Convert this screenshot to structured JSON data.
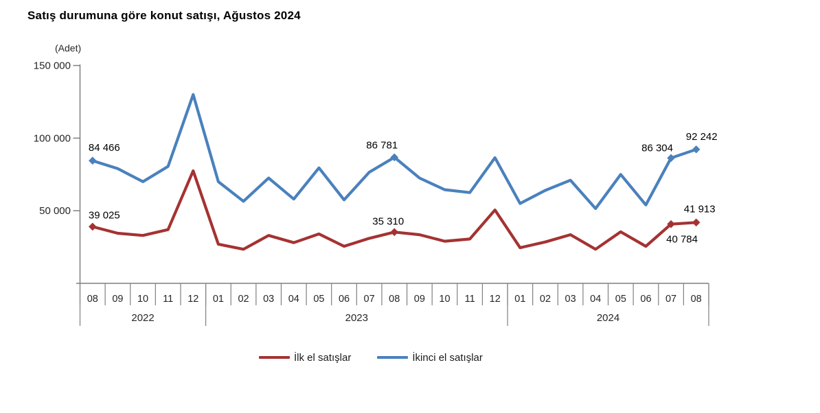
{
  "title": "Satış durumuna göre konut satışı, Ağustos 2024",
  "y_axis": {
    "unit": "(Adet)",
    "ticks": [
      {
        "label": "150 000",
        "value": 150000
      },
      {
        "label": "100 000",
        "value": 100000
      },
      {
        "label": "50 000",
        "value": 50000
      }
    ]
  },
  "chart_data": {
    "type": "line",
    "title": "Satış durumuna göre konut satışı, Ağustos 2024",
    "ylabel": "(Adet)",
    "xlabel": "",
    "ylim": [
      0,
      150000
    ],
    "grid": false,
    "legend_position": "bottom",
    "axis_color": "#7f7f7f",
    "categories": {
      "months": [
        "08",
        "09",
        "10",
        "11",
        "12",
        "01",
        "02",
        "03",
        "04",
        "05",
        "06",
        "07",
        "08",
        "09",
        "10",
        "11",
        "12",
        "01",
        "02",
        "03",
        "04",
        "05",
        "06",
        "07",
        "08"
      ],
      "year_groups": [
        {
          "label": "2022",
          "months": 5
        },
        {
          "label": "2023",
          "months": 12
        },
        {
          "label": "2024",
          "months": 8
        }
      ]
    },
    "series": [
      {
        "name": "İlk el satışlar",
        "color": "#A53232",
        "values": [
          39025,
          34500,
          33000,
          37000,
          77500,
          27000,
          23500,
          33000,
          28000,
          34000,
          25500,
          31000,
          35310,
          33500,
          29000,
          30500,
          50500,
          24500,
          28500,
          33500,
          23500,
          35500,
          25500,
          40784,
          41913
        ],
        "marker_indices": [
          0,
          12,
          23,
          24
        ],
        "point_labels": [
          {
            "index": 0,
            "text": "39 025",
            "dx": 17,
            "dy": -17
          },
          {
            "index": 12,
            "text": "35 310",
            "dx": -9,
            "dy": -16
          },
          {
            "index": 23,
            "text": "40 784",
            "dx": 16,
            "dy": 22
          },
          {
            "index": 24,
            "text": "41 913",
            "dx": 5,
            "dy": -20
          }
        ]
      },
      {
        "name": "İkinci el satışlar",
        "color": "#4A81BD",
        "values": [
          84466,
          79000,
          70000,
          80500,
          130000,
          70000,
          56500,
          72500,
          58000,
          79500,
          57500,
          76500,
          86781,
          72500,
          64500,
          62500,
          86500,
          55000,
          64000,
          71000,
          51500,
          75000,
          54000,
          86304,
          92242
        ],
        "marker_indices": [
          0,
          12,
          23,
          24
        ],
        "point_labels": [
          {
            "index": 0,
            "text": "84 466",
            "dx": 17,
            "dy": -19
          },
          {
            "index": 12,
            "text": "86 781",
            "dx": -18,
            "dy": -18
          },
          {
            "index": 23,
            "text": "86 304",
            "dx": -20,
            "dy": -15
          },
          {
            "index": 24,
            "text": "92 242",
            "dx": 8,
            "dy": -19
          }
        ]
      }
    ]
  },
  "legend": {
    "items": [
      {
        "label": "İlk el satışlar"
      },
      {
        "label": "İkinci el satışlar"
      }
    ]
  }
}
